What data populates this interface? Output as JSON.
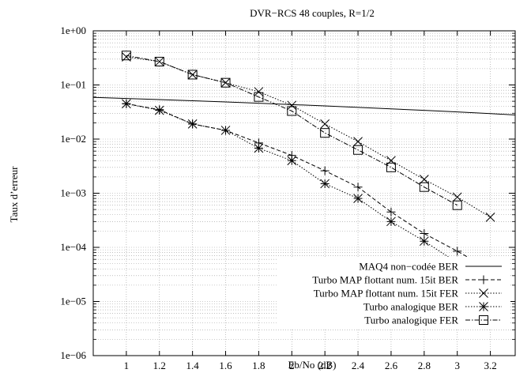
{
  "chart_data": {
    "type": "line",
    "title": "DVR−RCS 48 couples, R=1/2",
    "xlabel": "Eb/No (dB)",
    "ylabel": "Taux d’erreur",
    "xlim": [
      0.8,
      3.35
    ],
    "ylim": [
      1e-06,
      1
    ],
    "y_scale": "log",
    "grid": "dotted, major and minor",
    "legend_position": "bottom-right",
    "x_ticks": [
      "1",
      "1.2",
      "1.4",
      "1.6",
      "1.8",
      "2",
      "2.2",
      "2.4",
      "2.6",
      "2.8",
      "3",
      "3.2"
    ],
    "y_ticks": [
      "1e+00",
      "1e−01",
      "1e−02",
      "1e−03",
      "1e−04",
      "1e−05",
      "1e−06"
    ],
    "series": [
      {
        "name": "MAQ4 non−codée BER",
        "line": "solid",
        "marker": "none",
        "x": [
          0.8,
          1.0,
          1.2,
          1.4,
          1.6,
          1.8,
          2.0,
          2.2,
          2.4,
          2.6,
          2.8,
          3.0,
          3.2,
          3.35
        ],
        "y": [
          0.059,
          0.0563,
          0.0537,
          0.051,
          0.0485,
          0.0459,
          0.0434,
          0.041,
          0.0386,
          0.0362,
          0.0339,
          0.0317,
          0.0296,
          0.0279
        ]
      },
      {
        "name": "Turbo MAP flottant num. 15it BER",
        "line": "dashed",
        "marker": "plus",
        "x": [
          1.0,
          1.2,
          1.4,
          1.6,
          1.8,
          2.0,
          2.2,
          2.4,
          2.6,
          2.8,
          3.0,
          3.2
        ],
        "y": [
          0.045,
          0.035,
          0.019,
          0.0145,
          0.0085,
          0.005,
          0.0026,
          0.0013,
          0.00045,
          0.00018,
          8.5e-05,
          3.8e-05
        ]
      },
      {
        "name": "Turbo MAP flottant num. 15it FER",
        "line": "dotted",
        "marker": "x",
        "x": [
          1.0,
          1.2,
          1.4,
          1.6,
          1.8,
          2.0,
          2.2,
          2.4,
          2.6,
          2.8,
          3.0,
          3.2
        ],
        "y": [
          0.33,
          0.27,
          0.155,
          0.11,
          0.075,
          0.042,
          0.019,
          0.009,
          0.004,
          0.0018,
          0.00085,
          0.00036
        ]
      },
      {
        "name": "Turbo analogique BER",
        "line": "dotted",
        "marker": "star",
        "x": [
          1.0,
          1.2,
          1.4,
          1.6,
          1.8,
          2.0,
          2.2,
          2.4,
          2.6,
          2.8,
          3.0
        ],
        "y": [
          0.045,
          0.034,
          0.019,
          0.0145,
          0.0068,
          0.004,
          0.0015,
          0.0008,
          0.0003,
          0.00013,
          5.2e-05
        ]
      },
      {
        "name": "Turbo analogique FER",
        "line": "dash-dot",
        "marker": "square",
        "x": [
          1.0,
          1.2,
          1.4,
          1.6,
          1.8,
          2.0,
          2.2,
          2.4,
          2.6,
          2.8,
          3.0
        ],
        "y": [
          0.35,
          0.27,
          0.155,
          0.11,
          0.06,
          0.033,
          0.013,
          0.0063,
          0.003,
          0.0013,
          0.0006
        ]
      }
    ]
  }
}
